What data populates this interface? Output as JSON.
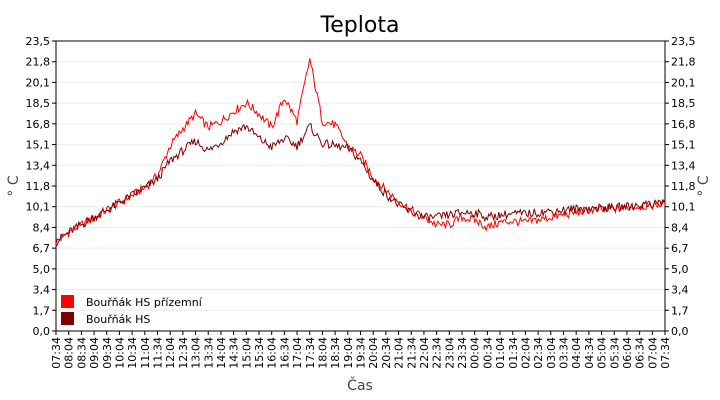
{
  "chart_data": {
    "type": "line",
    "title": "Teplota",
    "xlabel": "Čas",
    "ylabel": "° C",
    "ylabel_right": "° C",
    "ylim": [
      0,
      23.5
    ],
    "yticks": [
      "0,0",
      "1,7",
      "3,4",
      "5,0",
      "6,7",
      "8,4",
      "10,1",
      "11,8",
      "13,4",
      "15,1",
      "16,8",
      "18,5",
      "20,1",
      "21,8",
      "23,5"
    ],
    "xticks": [
      "07:34",
      "08:04",
      "08:34",
      "09:04",
      "09:34",
      "10:04",
      "10:34",
      "11:04",
      "11:34",
      "12:04",
      "12:34",
      "13:04",
      "13:34",
      "14:04",
      "14:34",
      "15:04",
      "15:34",
      "16:04",
      "16:34",
      "17:04",
      "17:34",
      "18:04",
      "18:34",
      "19:04",
      "19:34",
      "20:04",
      "20:34",
      "21:04",
      "21:34",
      "22:04",
      "22:34",
      "23:04",
      "23:34",
      "00:04",
      "00:34",
      "01:04",
      "01:34",
      "02:04",
      "02:34",
      "03:04",
      "03:34",
      "04:04",
      "04:34",
      "05:04",
      "05:34",
      "06:04",
      "06:34",
      "07:04",
      "07:34"
    ],
    "grid": true,
    "legend_position": "bottom-left",
    "series": [
      {
        "name": "Bouřňák HS přízemní",
        "color": "#ff0000",
        "values": [
          7.2,
          8.0,
          8.6,
          9.2,
          9.8,
          10.4,
          11.0,
          11.6,
          12.6,
          15.0,
          16.4,
          17.6,
          16.5,
          17.0,
          17.8,
          18.5,
          17.6,
          16.5,
          18.9,
          17.0,
          22.0,
          17.0,
          16.7,
          15.0,
          14.2,
          12.5,
          11.4,
          10.5,
          9.8,
          9.2,
          8.6,
          8.6,
          9.2,
          9.0,
          8.4,
          8.8,
          8.9,
          8.8,
          9.0,
          9.2,
          9.4,
          9.6,
          9.8,
          9.8,
          9.9,
          10.0,
          10.1,
          10.2,
          10.3
        ]
      },
      {
        "name": "Bouřňák HS",
        "color": "#800000",
        "values": [
          7.2,
          8.0,
          8.6,
          9.2,
          9.8,
          10.4,
          11.0,
          11.6,
          12.3,
          13.8,
          14.6,
          15.4,
          14.6,
          15.3,
          16.2,
          16.6,
          15.6,
          14.9,
          15.6,
          15.0,
          16.6,
          15.2,
          15.0,
          14.8,
          13.8,
          12.2,
          11.1,
          10.2,
          9.6,
          9.2,
          9.2,
          9.4,
          9.6,
          9.6,
          9.2,
          9.4,
          9.5,
          9.5,
          9.6,
          9.7,
          9.8,
          9.9,
          9.9,
          10.0,
          10.0,
          10.1,
          10.2,
          10.3,
          10.5
        ]
      }
    ]
  }
}
